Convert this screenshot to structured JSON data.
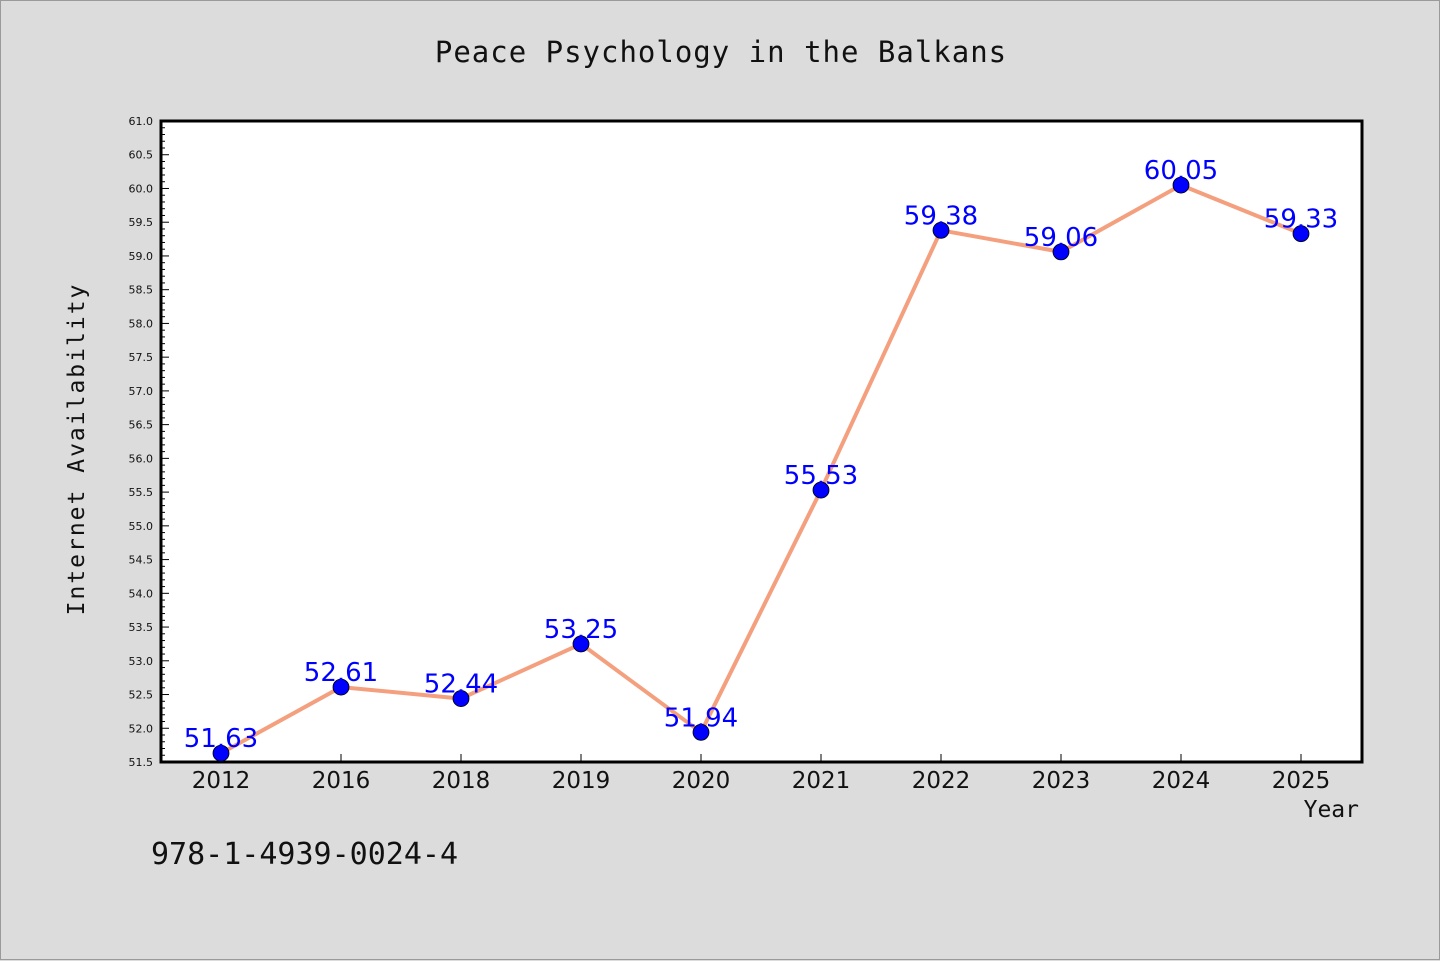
{
  "chart_data": {
    "type": "line",
    "title": "Peace Psychology in the Balkans",
    "xlabel": "Year",
    "ylabel": "Internet Availability",
    "categories": [
      "2012",
      "2016",
      "2018",
      "2019",
      "2020",
      "2021",
      "2022",
      "2023",
      "2024",
      "2025"
    ],
    "series": [
      {
        "values": [
          51.63,
          52.61,
          52.44,
          53.25,
          51.94,
          55.53,
          59.38,
          59.06,
          60.05,
          59.33
        ],
        "labels": [
          "51.63",
          "52.61",
          "52.44",
          "53.25",
          "51.94",
          "55.53",
          "59.38",
          "59.06",
          "60.05",
          "59.33"
        ]
      }
    ],
    "ylim": [
      51.5,
      61.0
    ],
    "y_ticks": [
      "51.5",
      "52.0",
      "52.5",
      "53.0",
      "53.5",
      "54.0",
      "54.5",
      "55.0",
      "55.5",
      "56.0",
      "56.5",
      "57.0",
      "57.5",
      "58.0",
      "58.5",
      "59.0",
      "59.5",
      "60.0",
      "60.5",
      "61.0"
    ],
    "grid": false,
    "legend": "none"
  },
  "footer": {
    "code": "978-1-4939-0024-4"
  },
  "colors": {
    "background": "#dcdcdc",
    "plot_background": "#ffffff",
    "line": "#f4a07f",
    "marker": "#0000ff",
    "data_label": "#0000ff"
  }
}
